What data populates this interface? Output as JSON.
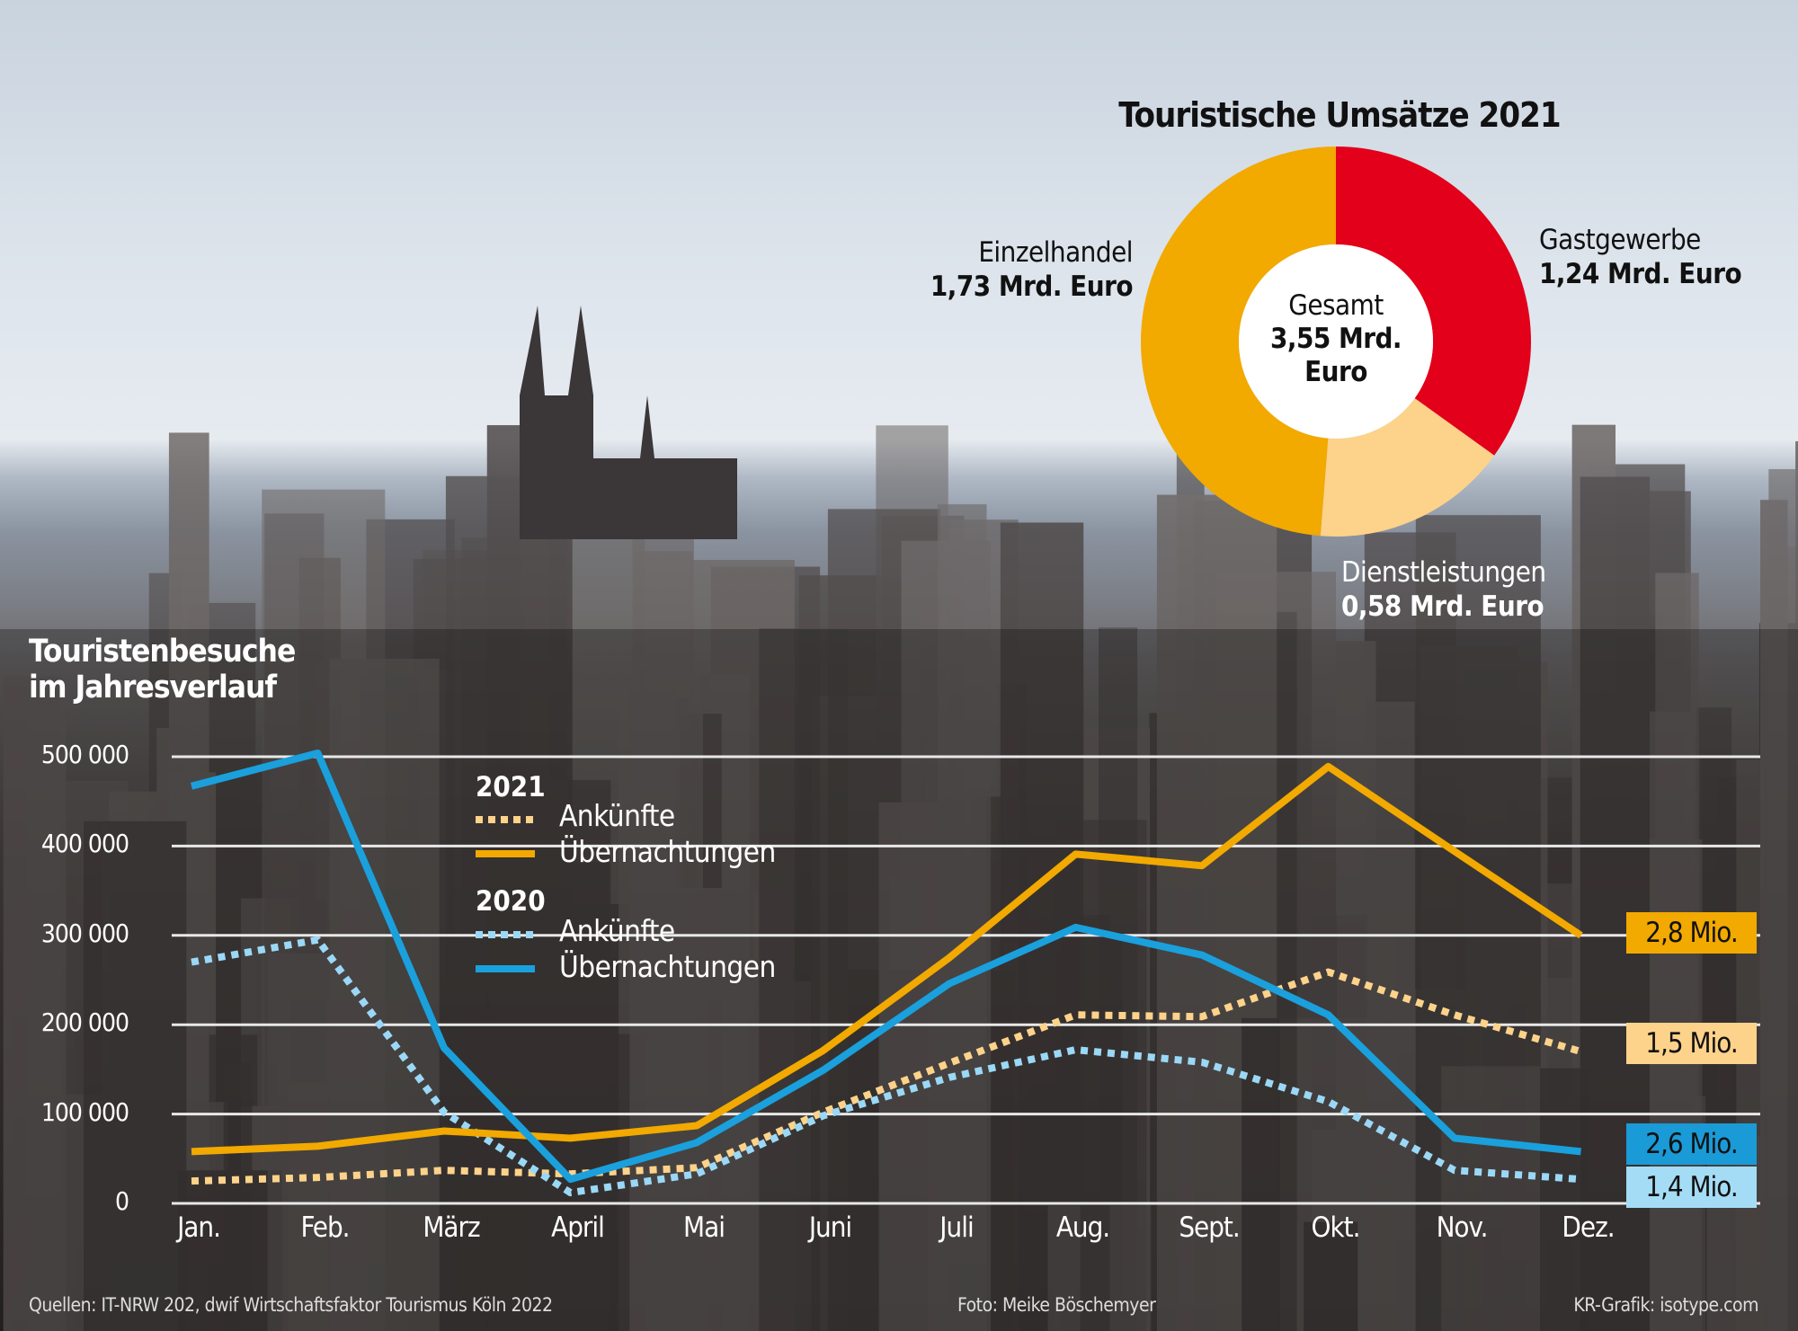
{
  "colors": {
    "einzelhandel": "#f2a900",
    "gastgewerbe": "#e2001a",
    "dienstleistungen": "#fdd28a",
    "uebernachtungen_2021": "#f2a900",
    "ankuenfte_2021": "#fdd28a",
    "uebernachtungen_2020": "#1aa0dc",
    "ankuenfte_2020": "#9ad8f6"
  },
  "chart_data": [
    {
      "type": "pie",
      "style": "donut",
      "title": "Touristische Umsätze 2021",
      "center_label": [
        "Gesamt",
        "3,55 Mrd.",
        "Euro"
      ],
      "total": 3.55,
      "unit": "Mrd. Euro",
      "slices": [
        {
          "name": "Gastgewerbe",
          "value": 1.24,
          "label": "1,24 Mrd. Euro",
          "color": "#e2001a"
        },
        {
          "name": "Dienstleistungen",
          "value": 0.58,
          "label": "0,58 Mrd. Euro",
          "color": "#fdd28a"
        },
        {
          "name": "Einzelhandel",
          "value": 1.73,
          "label": "1,73 Mrd. Euro",
          "color": "#f2a900"
        }
      ]
    },
    {
      "type": "line",
      "title": [
        "Touristenbesuche",
        "im Jahresverlauf"
      ],
      "categories": [
        "Jan.",
        "Feb.",
        "März",
        "April",
        "Mai",
        "Juni",
        "Juli",
        "Aug.",
        "Sept.",
        "Okt.",
        "Nov.",
        "Dez."
      ],
      "ylim": [
        0,
        500000
      ],
      "yticks": [
        0,
        100000,
        200000,
        300000,
        400000,
        500000
      ],
      "ytick_labels": [
        "0",
        "100 000",
        "200 000",
        "300 000",
        "400 000",
        "500 000"
      ],
      "grid": true,
      "legend": {
        "placement": "top-center",
        "groups": [
          {
            "year": "2021",
            "items": [
              "Ankünfte",
              "Übernachtungen"
            ]
          },
          {
            "year": "2020",
            "items": [
              "Ankünfte",
              "Übernachtungen"
            ]
          }
        ]
      },
      "series": [
        {
          "name": "2021 Übernachtungen",
          "style": "solid",
          "color": "#f2a900",
          "total_label": "2,8 Mio.",
          "values": [
            58000,
            64000,
            81000,
            73000,
            87000,
            171000,
            275000,
            391000,
            378000,
            489000,
            394000,
            300000
          ]
        },
        {
          "name": "2021 Ankünfte",
          "style": "dotted",
          "color": "#fdd28a",
          "total_label": "1,5 Mio.",
          "values": [
            25000,
            29000,
            37000,
            33000,
            40000,
            102000,
            157000,
            211000,
            209000,
            259000,
            211000,
            170000
          ]
        },
        {
          "name": "2020 Übernachtungen",
          "style": "solid",
          "color": "#1aa0dc",
          "total_label": "2,6 Mio.",
          "values": [
            467000,
            504000,
            174000,
            27000,
            68000,
            149000,
            246000,
            309000,
            278000,
            211000,
            73000,
            58000
          ]
        },
        {
          "name": "2020 Ankünfte",
          "style": "dotted",
          "color": "#9ad8f6",
          "total_label": "1,4 Mio.",
          "values": [
            270000,
            295000,
            102000,
            12000,
            33000,
            98000,
            141000,
            172000,
            158000,
            114000,
            37000,
            27000
          ]
        }
      ]
    }
  ],
  "footer": {
    "sources": "Quellen: IT-NRW 202, dwif Wirtschaftsfaktor Tourismus Köln 2022",
    "photo": "Foto: Meike Böschemyer",
    "credit": "KR-Grafik: isotype.com"
  }
}
